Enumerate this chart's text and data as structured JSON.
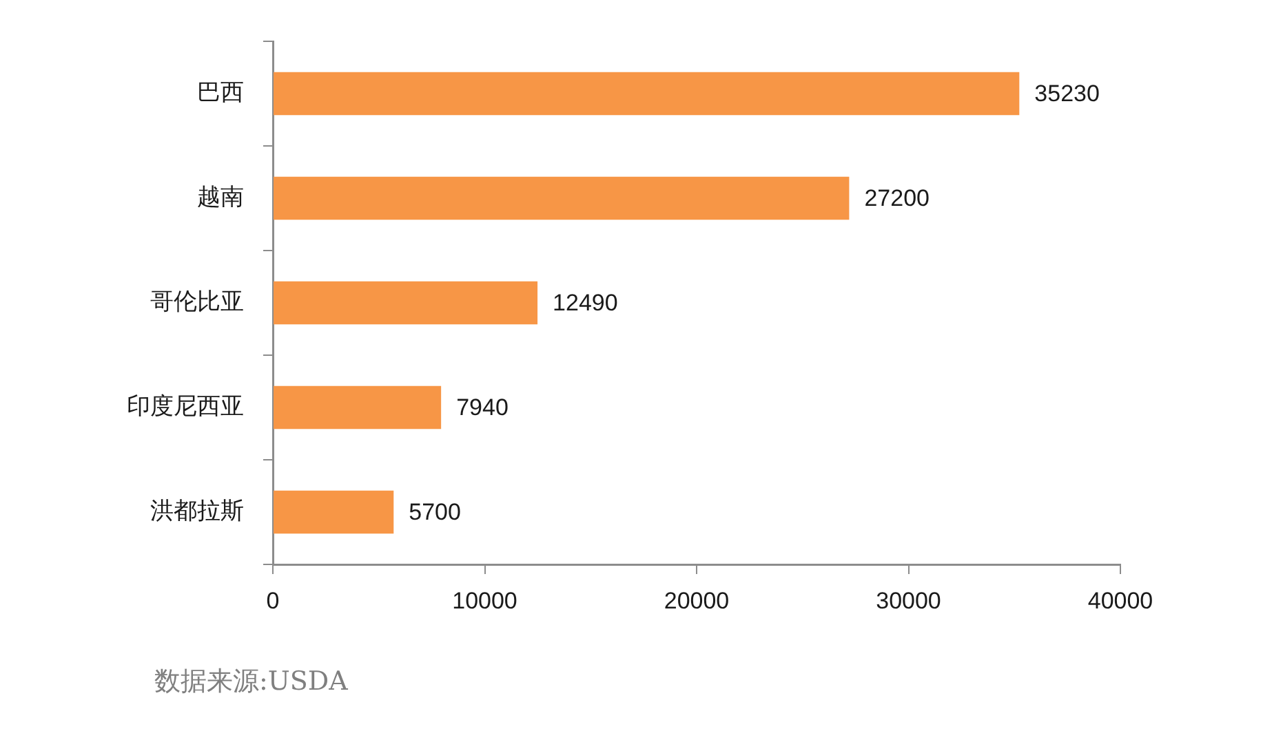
{
  "chart_data": {
    "type": "bar",
    "orientation": "horizontal",
    "categories": [
      "巴西",
      "越南",
      "哥伦比亚",
      "印度尼西亚",
      "洪都拉斯"
    ],
    "values": [
      35230,
      27200,
      12490,
      7940,
      5700
    ],
    "color": "#f79646",
    "xlim": [
      0,
      40000
    ],
    "xticks": [
      0,
      10000,
      20000,
      30000,
      40000
    ],
    "grid": false,
    "legend": false,
    "data_labels": true,
    "annotations": [
      "数据来源:USDA"
    ]
  }
}
